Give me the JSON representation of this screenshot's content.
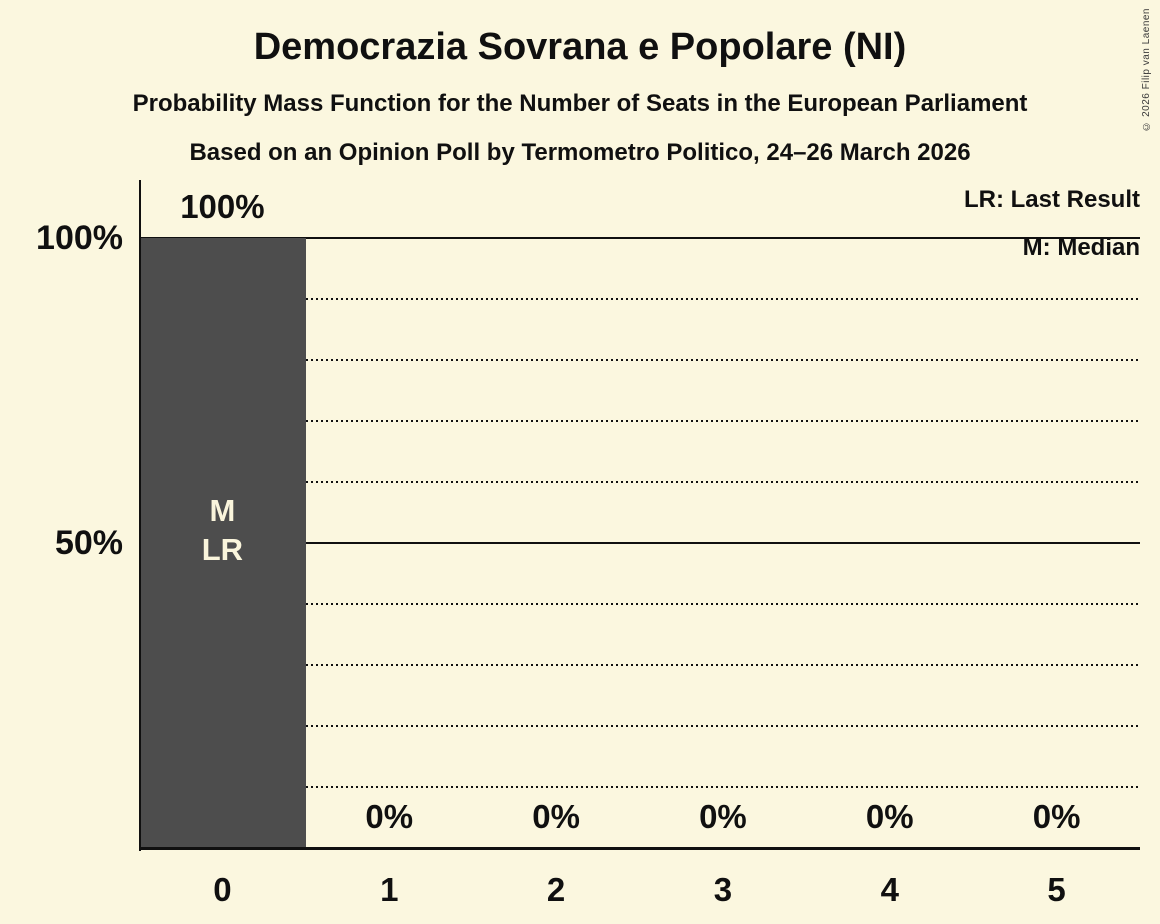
{
  "header": {
    "title": "Democrazia Sovrana e Popolare (NI)",
    "subtitle": "Probability Mass Function for the Number of Seats in the European Parliament",
    "poll_line": "Based on an Opinion Poll by Termometro Politico, 24–26 March 2026"
  },
  "copyright": "© 2026 Filip van Laenen",
  "legend": {
    "lr": "LR: Last Result",
    "m": "M: Median"
  },
  "colors": {
    "background": "#FBF7DF",
    "bar": "#4D4D4D",
    "text": "#101010",
    "bar_inner_label": "#FAF5DC"
  },
  "chart_data": {
    "type": "bar",
    "title": "Democrazia Sovrana e Popolare (NI)",
    "xlabel": "",
    "ylabel": "",
    "categories": [
      "0",
      "1",
      "2",
      "3",
      "4",
      "5"
    ],
    "values": [
      100,
      0,
      0,
      0,
      0,
      0
    ],
    "bar_labels": [
      "100%",
      "0%",
      "0%",
      "0%",
      "0%",
      "0%"
    ],
    "annotations": [
      {
        "category_index": 0,
        "lines": [
          "M",
          "LR"
        ]
      }
    ],
    "y_ticks": [
      {
        "value": 100,
        "label": "100%"
      },
      {
        "value": 50,
        "label": "50%"
      }
    ],
    "gridlines": {
      "solid": [
        100,
        50
      ],
      "dotted": [
        90,
        80,
        70,
        60,
        40,
        30,
        20,
        10
      ]
    },
    "ylim": [
      0,
      100
    ],
    "grid": "horizontal",
    "legend_position": "top-right",
    "legend_entries": [
      "LR: Last Result",
      "M: Median"
    ]
  }
}
